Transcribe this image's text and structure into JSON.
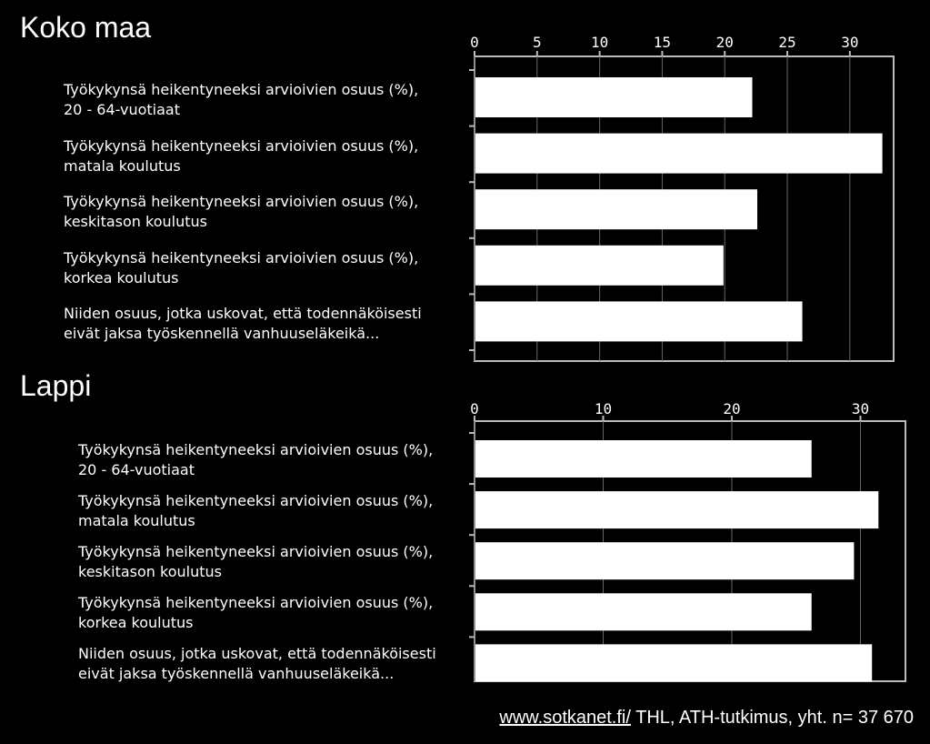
{
  "footer": {
    "link": "www.sotkanet.fi/",
    "text": " THL, ATH-tutkimus, yht. n= 37 670"
  },
  "chart_data": [
    {
      "type": "bar",
      "title": "Koko maa",
      "orientation": "horizontal",
      "categories": [
        "Työkykynsä heikentyneeksi arvioivien osuus (%),\n20 - 64-vuotiaat",
        "Työkykynsä heikentyneeksi arvioivien osuus (%),\nmatala koulutus",
        "Työkykynsä heikentyneeksi arvioivien osuus (%),\nkeskitason koulutus",
        "Työkykynsä heikentyneeksi arvioivien osuus (%),\nkorkea koulutus",
        "Niiden osuus, jotka uskovat, että todennäköisesti\neivät jaksa työskennellä vanhuuseläkeikä..."
      ],
      "values": [
        22.2,
        32.6,
        22.6,
        19.9,
        26.2
      ],
      "xlim": [
        0,
        33.5
      ],
      "ticks": [
        0,
        5,
        10,
        15,
        20,
        25,
        30
      ],
      "grid": true,
      "bar_color": "#ffffff"
    },
    {
      "type": "bar",
      "title": "Lappi",
      "orientation": "horizontal",
      "categories": [
        "Työkykynsä heikentyneeksi arvioivien osuus (%),\n20 - 64-vuotiaat",
        "Työkykynsä heikentyneeksi arvioivien osuus (%),\nmatala koulutus",
        "Työkykynsä heikentyneeksi arvioivien osuus (%),\nkeskitason koulutus",
        "Työkykynsä heikentyneeksi arvioivien osuus (%),\nkorkea koulutus",
        "Niiden osuus, jotka uskovat, että todennäköisesti\neivät jaksa työskennellä vanhuuseläkeikä..."
      ],
      "values": [
        26.2,
        31.4,
        29.5,
        26.2,
        30.9
      ],
      "xlim": [
        0,
        33.5
      ],
      "ticks": [
        0,
        10,
        20,
        30
      ],
      "grid": true,
      "bar_color": "#ffffff"
    }
  ]
}
